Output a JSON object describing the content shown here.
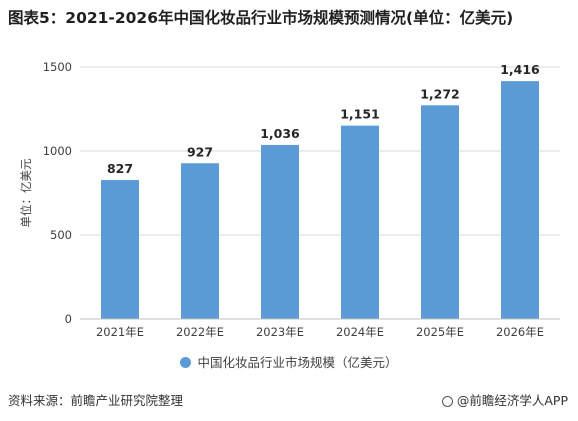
{
  "title": "图表5：2021-2026年中国化妆品行业市场规模预测情况(单位：亿美元)",
  "footer": {
    "source": "资料来源：前瞻产业研究院整理",
    "brand": "@前瞻经济学人APP",
    "brand_icon": "weibo-style-circle-icon"
  },
  "colors": {
    "bar": "#5b9bd5",
    "grid": "#d9d9d9"
  },
  "chart_data": {
    "type": "bar",
    "title": "图表5：2021-2026年中国化妆品行业市场规模预测情况(单位：亿美元)",
    "categories": [
      "2021年E",
      "2022年E",
      "2023年E",
      "2024年E",
      "2025年E",
      "2026年E"
    ],
    "series": [
      {
        "name": "中国化妆品行业市场规模（亿美元）",
        "values": [
          827,
          927,
          1036,
          1151,
          1272,
          1416
        ],
        "labels": [
          "827",
          "927",
          "1,036",
          "1,151",
          "1,272",
          "1,416"
        ]
      }
    ],
    "xlabel": "",
    "ylabel": "单位：亿美元",
    "ylim": [
      0,
      1500
    ],
    "yticks": [
      0,
      500,
      1000,
      1500
    ],
    "grid": true,
    "legend_position": "bottom"
  }
}
